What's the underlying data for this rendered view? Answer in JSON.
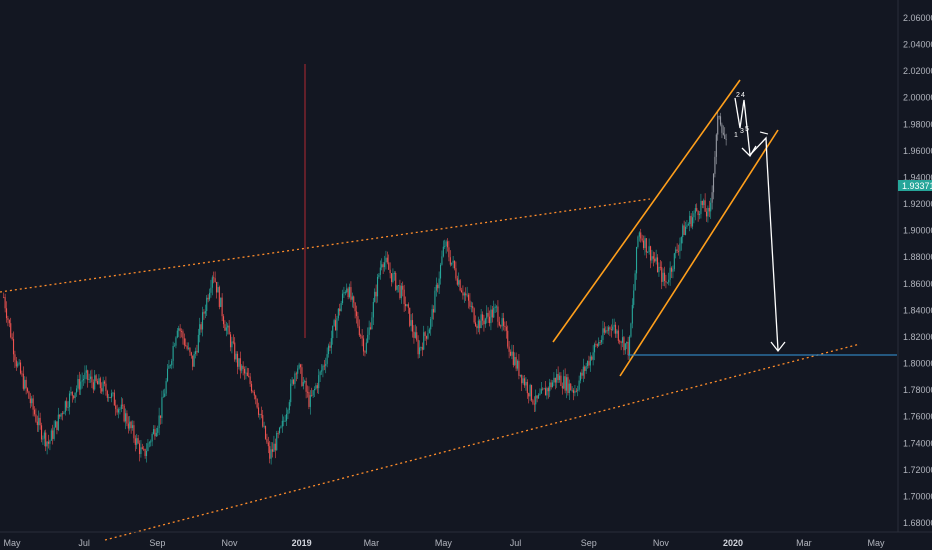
{
  "chart_data": {
    "type": "candlestick",
    "ylim": [
      1.67,
      2.07
    ],
    "price_axis_ticks": [
      "2.06000",
      "2.04000",
      "2.02000",
      "2.00000",
      "1.98000",
      "1.96000",
      "1.94000",
      "1.92000",
      "1.90000",
      "1.88000",
      "1.86000",
      "1.84000",
      "1.82000",
      "1.80000",
      "1.78000",
      "1.76000",
      "1.74000",
      "1.72000",
      "1.70000",
      "1.68000"
    ],
    "time_axis_ticks": [
      {
        "label": "May",
        "bold": false
      },
      {
        "label": "Jul",
        "bold": false
      },
      {
        "label": "Sep",
        "bold": false
      },
      {
        "label": "Nov",
        "bold": false
      },
      {
        "label": "2019",
        "bold": true
      },
      {
        "label": "Mar",
        "bold": false
      },
      {
        "label": "May",
        "bold": false
      },
      {
        "label": "Jul",
        "bold": false
      },
      {
        "label": "Sep",
        "bold": false
      },
      {
        "label": "Nov",
        "bold": false
      },
      {
        "label": "2020",
        "bold": true
      },
      {
        "label": "Mar",
        "bold": false
      },
      {
        "label": "May",
        "bold": false
      }
    ],
    "last_price": "1.93371",
    "price_path": [
      [
        "2018-04-24",
        1.85
      ],
      [
        "2018-05-05",
        1.8
      ],
      [
        "2018-05-25",
        1.75
      ],
      [
        "2018-06-01",
        1.74
      ],
      [
        "2018-06-15",
        1.77
      ],
      [
        "2018-07-01",
        1.79
      ],
      [
        "2018-07-20",
        1.78
      ],
      [
        "2018-08-05",
        1.76
      ],
      [
        "2018-08-20",
        1.73
      ],
      [
        "2018-09-03",
        1.76
      ],
      [
        "2018-09-18",
        1.83
      ],
      [
        "2018-10-01",
        1.8
      ],
      [
        "2018-10-18",
        1.87
      ],
      [
        "2018-10-28",
        1.83
      ],
      [
        "2018-11-08",
        1.8
      ],
      [
        "2018-11-22",
        1.78
      ],
      [
        "2018-12-05",
        1.73
      ],
      [
        "2018-12-15",
        1.75
      ],
      [
        "2018-12-28",
        1.8
      ],
      [
        "2019-01-08",
        1.77
      ],
      [
        "2019-01-20",
        1.8
      ],
      [
        "2019-02-08",
        1.86
      ],
      [
        "2019-02-24",
        1.81
      ],
      [
        "2019-03-10",
        1.88
      ],
      [
        "2019-03-28",
        1.85
      ],
      [
        "2019-04-10",
        1.81
      ],
      [
        "2019-04-20",
        1.83
      ],
      [
        "2019-05-02",
        1.89
      ],
      [
        "2019-05-15",
        1.86
      ],
      [
        "2019-05-30",
        1.83
      ],
      [
        "2019-06-15",
        1.84
      ],
      [
        "2019-07-01",
        1.8
      ],
      [
        "2019-07-18",
        1.77
      ],
      [
        "2019-08-05",
        1.79
      ],
      [
        "2019-08-20",
        1.78
      ],
      [
        "2019-09-05",
        1.81
      ],
      [
        "2019-09-20",
        1.83
      ],
      [
        "2019-10-05",
        1.81
      ],
      [
        "2019-10-13",
        1.9
      ],
      [
        "2019-10-25",
        1.88
      ],
      [
        "2019-11-05",
        1.86
      ],
      [
        "2019-11-20",
        1.9
      ],
      [
        "2019-12-05",
        1.92
      ],
      [
        "2019-12-12",
        1.91
      ],
      [
        "2019-12-20",
        1.99
      ],
      [
        "2019-12-27",
        1.96
      ]
    ]
  },
  "wave_labels": [
    "2",
    "4",
    "1",
    "3",
    "5"
  ]
}
